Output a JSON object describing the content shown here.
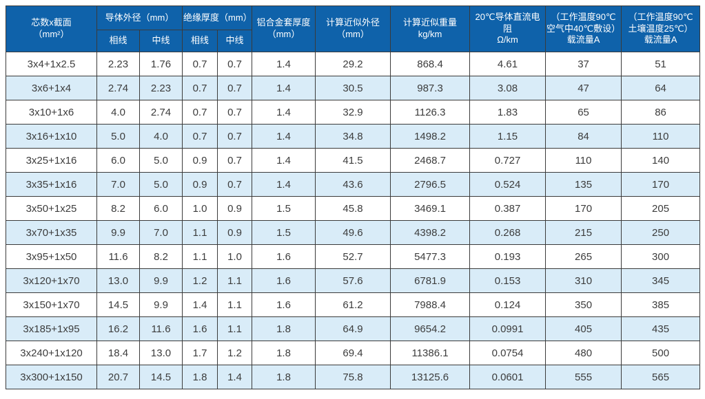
{
  "colors": {
    "header_bg": "#0f62aa",
    "header_text": "#ffffff",
    "row_bg": "#ffffff",
    "row_alt_bg": "#d9ecf8",
    "border": "#3a3a3a",
    "body_text": "#3c3c3c"
  },
  "header": {
    "core_line1": "芯数x截面",
    "core_line2": "（mm²）",
    "conductor_od": "导体外径（mm）",
    "insulation": "绝缘厚度（mm）",
    "phase": "相线",
    "neutral": "中线",
    "sheath_line1": "铝合金套厚度",
    "sheath_line2": "（mm）",
    "approx_od_line1": "计算近似外径",
    "approx_od_line2": "（mm）",
    "weight_line1": "计算近似重量",
    "weight_line2": "kg/km",
    "resistance_line1": "20℃导体直流电阻",
    "resistance_line2": "Ω/km",
    "ampacity_air_line1": "（工作温度90℃",
    "ampacity_air_line2": "空气中40℃敷设）",
    "ampacity_air_line3": "载流量A",
    "ampacity_soil_line1": "（工作温度90℃",
    "ampacity_soil_line2": "土壤温度25℃）",
    "ampacity_soil_line3": "载流量A"
  },
  "chart_data": {
    "type": "table",
    "columns": [
      "芯数x截面（mm²）",
      "导体外径（mm）相线",
      "导体外径（mm）中线",
      "绝缘厚度（mm）相线",
      "绝缘厚度（mm）中线",
      "铝合金套厚度（mm）",
      "计算近似外径（mm）",
      "计算近似重量 kg/km",
      "20℃导体直流电阻 Ω/km",
      "（工作温度90℃空气中40℃敷设）载流量A",
      "（工作温度90℃土壤温度25℃）载流量A"
    ],
    "rows": [
      [
        "3x4+1x2.5",
        "2.23",
        "1.76",
        "0.7",
        "0.7",
        "1.4",
        "29.2",
        "868.4",
        "4.61",
        "37",
        "51"
      ],
      [
        "3x6+1x4",
        "2.74",
        "2.23",
        "0.7",
        "0.7",
        "1.4",
        "30.5",
        "987.3",
        "3.08",
        "47",
        "64"
      ],
      [
        "3x10+1x6",
        "4.0",
        "2.74",
        "0.7",
        "0.7",
        "1.4",
        "32.9",
        "1126.3",
        "1.83",
        "65",
        "86"
      ],
      [
        "3x16+1x10",
        "5.0",
        "4.0",
        "0.7",
        "0.7",
        "1.4",
        "34.8",
        "1498.2",
        "1.15",
        "84",
        "110"
      ],
      [
        "3x25+1x16",
        "6.0",
        "5.0",
        "0.9",
        "0.7",
        "1.4",
        "41.5",
        "2468.7",
        "0.727",
        "110",
        "140"
      ],
      [
        "3x35+1x16",
        "7.0",
        "5.0",
        "0.9",
        "0.7",
        "1.4",
        "43.6",
        "2796.5",
        "0.524",
        "135",
        "170"
      ],
      [
        "3x50+1x25",
        "8.2",
        "6.0",
        "1.0",
        "0.9",
        "1.5",
        "45.8",
        "3469.1",
        "0.387",
        "170",
        "205"
      ],
      [
        "3x70+1x35",
        "9.9",
        "7.0",
        "1.1",
        "0.9",
        "1.5",
        "49.6",
        "4398.2",
        "0.268",
        "215",
        "250"
      ],
      [
        "3x95+1x50",
        "11.6",
        "8.2",
        "1.1",
        "1.0",
        "1.6",
        "52.7",
        "5477.3",
        "0.193",
        "265",
        "300"
      ],
      [
        "3x120+1x70",
        "13.0",
        "9.9",
        "1.2",
        "1.1",
        "1.6",
        "57.6",
        "6781.9",
        "0.153",
        "310",
        "345"
      ],
      [
        "3x150+1x70",
        "14.5",
        "9.9",
        "1.4",
        "1.1",
        "1.6",
        "61.2",
        "7988.4",
        "0.124",
        "350",
        "385"
      ],
      [
        "3x185+1x95",
        "16.2",
        "11.6",
        "1.6",
        "1.1",
        "1.8",
        "64.9",
        "9654.2",
        "0.0991",
        "405",
        "435"
      ],
      [
        "3x240+1x120",
        "18.4",
        "13.0",
        "1.7",
        "1.2",
        "1.8",
        "69.4",
        "11386.1",
        "0.0754",
        "480",
        "500"
      ],
      [
        "3x300+1x150",
        "20.7",
        "14.5",
        "1.8",
        "1.4",
        "1.8",
        "75.8",
        "13125.6",
        "0.0601",
        "555",
        "565"
      ]
    ]
  }
}
